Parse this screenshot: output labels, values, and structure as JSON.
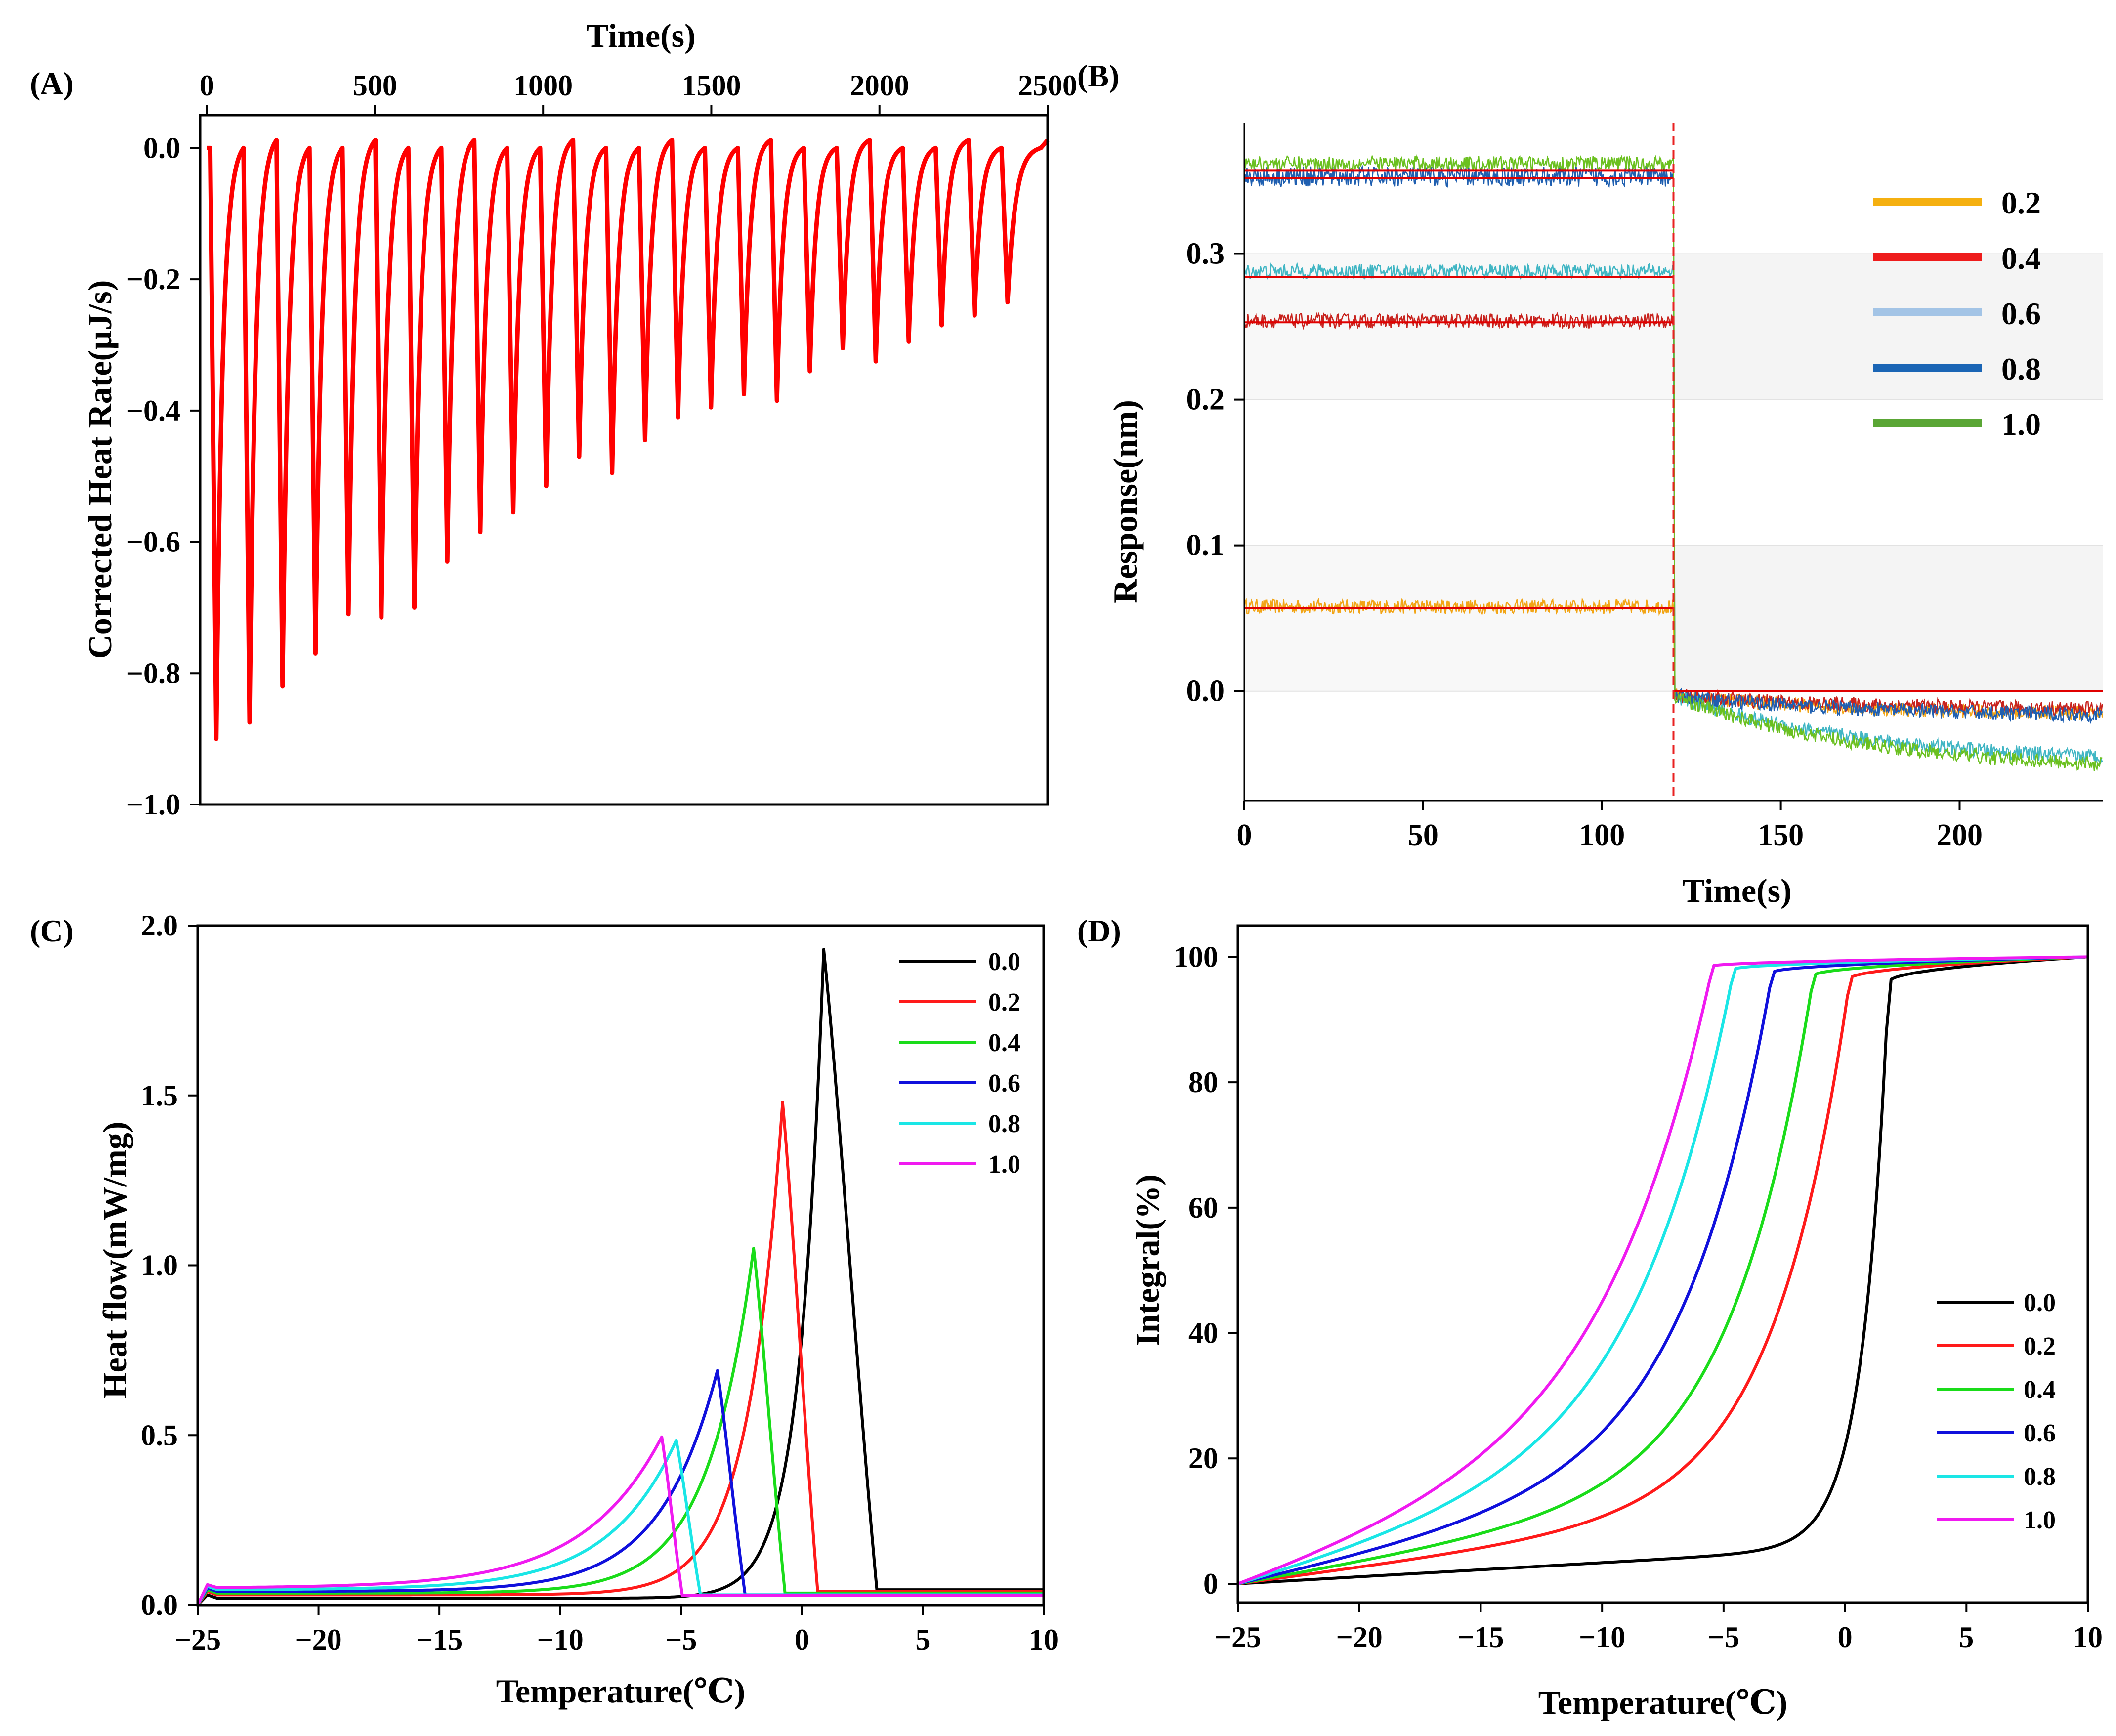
{
  "chart_data": [
    {
      "panel": "(A)",
      "type": "line",
      "xlabel": "Time(s)",
      "ylabel": "Corrected Heat Rate(µJ/s)",
      "xaxis_position": "top",
      "xlim": [
        -20,
        2500
      ],
      "ylim": [
        -1.0,
        0.05
      ],
      "xticks": [
        0,
        500,
        1000,
        1500,
        2000,
        2500
      ],
      "yticks": [
        0.0,
        -0.2,
        -0.4,
        -0.6,
        -0.8,
        -1.0
      ],
      "xtick_labels": [
        "0",
        "500",
        "1000",
        "1500",
        "2000",
        "2500"
      ],
      "ytick_labels": [
        "0.0",
        "−0.2",
        "−0.4",
        "−0.6",
        "−0.8",
        "−1.0"
      ],
      "color": "#ff0000",
      "series": [
        {
          "name": "heat rate",
          "peak_times": [
            28,
            127,
            225,
            323,
            421,
            519,
            617,
            715,
            813,
            911,
            1009,
            1107,
            1205,
            1303,
            1401,
            1499,
            1597,
            1695,
            1793,
            1891,
            1989,
            2087,
            2185,
            2283,
            2381
          ],
          "peak_values": [
            -0.9,
            -0.875,
            -0.82,
            -0.77,
            -0.71,
            -0.715,
            -0.7,
            -0.63,
            -0.585,
            -0.555,
            -0.515,
            -0.47,
            -0.495,
            -0.445,
            -0.41,
            -0.395,
            -0.375,
            -0.385,
            -0.34,
            -0.305,
            -0.325,
            -0.295,
            -0.27,
            -0.255,
            -0.235
          ]
        }
      ]
    },
    {
      "panel": "(B)",
      "type": "line",
      "xlabel": "Time(s)",
      "ylabel": "Response(nm)",
      "xlim": [
        0,
        240
      ],
      "ylim": [
        -0.075,
        0.39
      ],
      "xticks": [
        0,
        50,
        100,
        150,
        200
      ],
      "yticks": [
        0.0,
        0.1,
        0.2,
        0.3
      ],
      "xtick_labels": [
        "0",
        "50",
        "100",
        "150",
        "200"
      ],
      "ytick_labels": [
        "0.0",
        "0.1",
        "0.2",
        "0.3"
      ],
      "dissociation_start": 120,
      "legend_position": "top-right",
      "series": [
        {
          "name": "0.2",
          "color": "#f5b010",
          "trace_color": "#f2a516",
          "association_level": 0.058,
          "end_level": -0.015
        },
        {
          "name": "0.4",
          "color": "#ee1c1c",
          "trace_color": "#c8231e",
          "association_level": 0.254,
          "end_level": -0.012
        },
        {
          "name": "0.6",
          "color": "#a3c4e6",
          "trace_color": "#41b6c4",
          "association_level": 0.288,
          "end_level": -0.045
        },
        {
          "name": "0.8",
          "color": "#1a65b5",
          "trace_color": "#1f5fb0",
          "association_level": 0.353,
          "end_level": -0.016
        },
        {
          "name": "1.0",
          "color": "#5aa635",
          "trace_color": "#6bc020",
          "association_level": 0.362,
          "end_level": -0.05
        }
      ],
      "fit_lines": {
        "color": "#e00000",
        "levels": [
          0.057,
          0.253,
          0.284,
          0.352,
          0.357
        ]
      }
    },
    {
      "panel": "(C)",
      "type": "line",
      "xlabel": "Temperature(℃)",
      "ylabel": "Heat flow(mW/mg)",
      "xlim": [
        -25,
        10
      ],
      "ylim": [
        0.0,
        2.0
      ],
      "xticks": [
        -25,
        -20,
        -15,
        -10,
        -5,
        0,
        5,
        10
      ],
      "yticks": [
        0.0,
        0.5,
        1.0,
        1.5,
        2.0
      ],
      "xtick_labels": [
        "−25",
        "−20",
        "−15",
        "−10",
        "−5",
        "0",
        "5",
        "10"
      ],
      "ytick_labels": [
        "0.0",
        "0.5",
        "1.0",
        "1.5",
        "2.0"
      ],
      "legend_position": "top-right",
      "series": [
        {
          "name": "0.0",
          "color": "#000000",
          "peak_temp": 0.9,
          "peak_value": 1.93,
          "baseline_start": 0.02,
          "baseline_end": 0.045
        },
        {
          "name": "0.2",
          "color": "#ff1a1a",
          "peak_temp": -0.8,
          "peak_value": 1.48,
          "baseline_start": 0.03,
          "baseline_end": 0.04
        },
        {
          "name": "0.4",
          "color": "#1adc1a",
          "peak_temp": -2.0,
          "peak_value": 1.05,
          "baseline_start": 0.035,
          "baseline_end": 0.035
        },
        {
          "name": "0.6",
          "color": "#1010dc",
          "peak_temp": -3.5,
          "peak_value": 0.69,
          "baseline_start": 0.04,
          "baseline_end": 0.03
        },
        {
          "name": "0.8",
          "color": "#1ae6e6",
          "peak_temp": -5.2,
          "peak_value": 0.485,
          "baseline_start": 0.045,
          "baseline_end": 0.03
        },
        {
          "name": "1.0",
          "color": "#f01af0",
          "peak_temp": -5.8,
          "peak_value": 0.495,
          "baseline_start": 0.05,
          "baseline_end": 0.028
        }
      ]
    },
    {
      "panel": "(D)",
      "type": "line",
      "xlabel": "Temperature(℃)",
      "ylabel": "Integral(%)",
      "xlim": [
        -25,
        10
      ],
      "ylim": [
        -3,
        105
      ],
      "xticks": [
        -25,
        -20,
        -15,
        -10,
        -5,
        0,
        5,
        10
      ],
      "yticks": [
        0,
        20,
        40,
        60,
        80,
        100
      ],
      "xtick_labels": [
        "−25",
        "−20",
        "−15",
        "−10",
        "−5",
        "0",
        "5",
        "10"
      ],
      "ytick_labels": [
        "0",
        "20",
        "40",
        "60",
        "80",
        "100"
      ],
      "legend_position": "bottom-right",
      "series": [
        {
          "name": "0.0",
          "color": "#000000",
          "end_temp": 1.8
        },
        {
          "name": "0.2",
          "color": "#ff1a1a",
          "end_temp": 0.2
        },
        {
          "name": "0.4",
          "color": "#1adc1a",
          "end_temp": -1.3
        },
        {
          "name": "0.6",
          "color": "#1010dc",
          "end_temp": -3.0
        },
        {
          "name": "0.8",
          "color": "#1ae6e6",
          "end_temp": -4.6
        },
        {
          "name": "1.0",
          "color": "#f01af0",
          "end_temp": -5.5
        }
      ]
    }
  ]
}
